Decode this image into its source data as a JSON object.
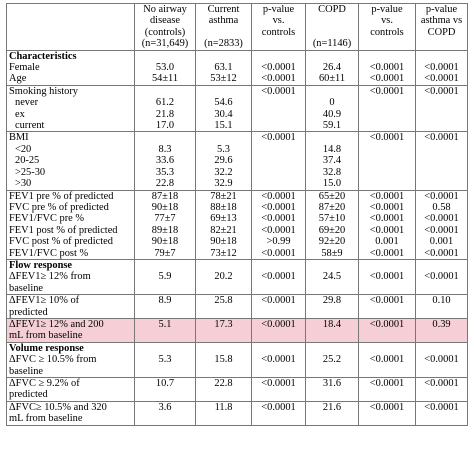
{
  "header": {
    "col1": [
      "No airway",
      "disease",
      "(controls)",
      "(n=31,649)"
    ],
    "col2": [
      "Current",
      "asthma",
      "",
      "(n=2833)"
    ],
    "col3": [
      "p-value",
      "vs.",
      "controls"
    ],
    "col4": [
      "COPD",
      "",
      "",
      "(n=1146)"
    ],
    "col5": [
      "p-value",
      "vs.",
      "controls"
    ],
    "col6": [
      "p-value",
      "asthma vs",
      "COPD"
    ]
  },
  "rows": [
    {
      "style": "section",
      "label": [
        "Characteristics",
        "Female",
        "Age"
      ],
      "c1": [
        "",
        "53.0",
        "54±11"
      ],
      "c2": [
        "",
        "63.1",
        "53±12"
      ],
      "c3": [
        "",
        "<0.0001",
        "<0.0001"
      ],
      "c4": [
        "",
        "26.4",
        "60±11"
      ],
      "c5": [
        "",
        "<0.0001",
        "<0.0001"
      ],
      "c6": [
        "",
        "<0.0001",
        "<0.0001"
      ]
    },
    {
      "style": "group",
      "label": [
        "Smoking history",
        "never",
        "ex",
        "current"
      ],
      "c1": [
        "",
        "61.2",
        "21.8",
        "17.0"
      ],
      "c2": [
        "",
        "54.6",
        "30.4",
        "15.1"
      ],
      "c3": [
        "<0.0001",
        "",
        "",
        ""
      ],
      "c4": [
        "",
        "0",
        "40.9",
        "59.1"
      ],
      "c5": [
        "<0.0001",
        "",
        "",
        ""
      ],
      "c6": [
        "<0.0001",
        "",
        "",
        ""
      ]
    },
    {
      "style": "group",
      "label": [
        "BMI",
        "<20",
        "20-25",
        ">25-30",
        ">30"
      ],
      "c1": [
        "",
        "8.3",
        "33.6",
        "35.3",
        "22.8"
      ],
      "c2": [
        "",
        "5.3",
        "29.6",
        "32.2",
        "32.9"
      ],
      "c3": [
        "<0.0001",
        "",
        "",
        "",
        ""
      ],
      "c4": [
        "",
        "14.8",
        "37.4",
        "32.8",
        "15.0"
      ],
      "c5": [
        "<0.0001",
        "",
        "",
        "",
        ""
      ],
      "c6": [
        "<0.0001",
        "",
        "",
        "",
        ""
      ]
    },
    {
      "style": "plain",
      "label": [
        "FEV1 pre % of predicted",
        "FVC pre % of predicted",
        "FEV1/FVC pre  %",
        "FEV1 post % of predicted",
        "FVC post % of predicted",
        "FEV1/FVC post  %"
      ],
      "c1": [
        "87±18",
        "90±18",
        "77±7",
        "89±18",
        "90±18",
        "79±7"
      ],
      "c2": [
        "78±21",
        "88±18",
        "69±13",
        "82±21",
        "90±18",
        "73±12"
      ],
      "c3": [
        "<0.0001",
        "<0.0001",
        "<0.0001",
        "<0.0001",
        ">0.99",
        "<0.0001"
      ],
      "c4": [
        "65±20",
        "87±20",
        "57±10",
        "69±20",
        "92±20",
        "58±9"
      ],
      "c5": [
        "<0.0001",
        "<0.0001",
        "<0.0001",
        "<0.0001",
        "0.001",
        "<0.0001"
      ],
      "c6": [
        "<0.0001",
        "0.58",
        "<0.0001",
        "<0.0001",
        "0.001",
        "<0.0001"
      ]
    },
    {
      "style": "section",
      "label": [
        "Flow response",
        "ΔFEV1≥ 12% from",
        "baseline"
      ],
      "c1": [
        "",
        "5.9"
      ],
      "c2": [
        "",
        "20.2"
      ],
      "c3": [
        "",
        "<0.0001"
      ],
      "c4": [
        "",
        "24.5"
      ],
      "c5": [
        "",
        "<0.0001"
      ],
      "c6": [
        "",
        "<0.0001"
      ]
    },
    {
      "style": "plain",
      "label": [
        "ΔFEV1≥ 10% of",
        "predicted"
      ],
      "c1": [
        "8.9"
      ],
      "c2": [
        "25.8"
      ],
      "c3": [
        "<0.0001"
      ],
      "c4": [
        "29.8"
      ],
      "c5": [
        "<0.0001"
      ],
      "c6": [
        "0.10"
      ]
    },
    {
      "style": "highlight",
      "label": [
        "ΔFEV1≥ 12% and 200",
        "mL from baseline"
      ],
      "c1": [
        "5.1"
      ],
      "c2": [
        "17.3"
      ],
      "c3": [
        "<0.0001"
      ],
      "c4": [
        "18.4"
      ],
      "c5": [
        "<0.0001"
      ],
      "c6": [
        "0.39"
      ]
    },
    {
      "style": "section",
      "label": [
        "Volume response",
        "ΔFVC ≥ 10.5% from",
        "baseline"
      ],
      "c1": [
        "",
        "5.3"
      ],
      "c2": [
        "",
        "15.8"
      ],
      "c3": [
        "",
        "<0.0001"
      ],
      "c4": [
        "",
        "25.2"
      ],
      "c5": [
        "",
        "<0.0001"
      ],
      "c6": [
        "",
        "<0.0001"
      ]
    },
    {
      "style": "plain",
      "label": [
        "ΔFVC ≥ 9.2% of",
        "predicted"
      ],
      "c1": [
        "10.7"
      ],
      "c2": [
        "22.8"
      ],
      "c3": [
        "<0.0001"
      ],
      "c4": [
        "31.6"
      ],
      "c5": [
        "<0.0001"
      ],
      "c6": [
        "<0.0001"
      ]
    },
    {
      "style": "plain",
      "label": [
        "ΔFVC≥ 10.5% and 320",
        "mL from baseline"
      ],
      "c1": [
        "3.6"
      ],
      "c2": [
        "11.8"
      ],
      "c3": [
        "<0.0001"
      ],
      "c4": [
        "21.6"
      ],
      "c5": [
        "<0.0001"
      ],
      "c6": [
        "<0.0001"
      ]
    }
  ]
}
